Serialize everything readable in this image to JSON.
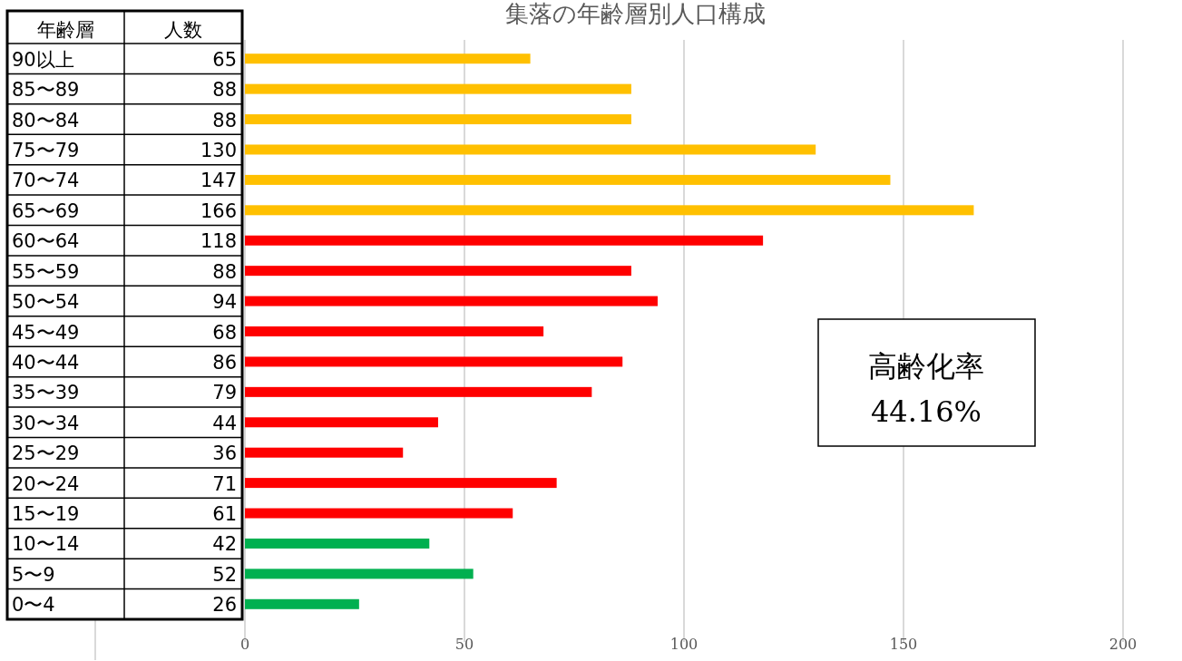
{
  "chart_data": {
    "type": "bar",
    "orientation": "horizontal",
    "title": "集落の年齢層別人口構成",
    "ylabel": "年齢層",
    "xlabel": "人数",
    "categories": [
      "90以上",
      "85〜89",
      "80〜84",
      "75〜79",
      "70〜74",
      "65〜69",
      "60〜64",
      "55〜59",
      "50〜54",
      "45〜49",
      "40〜44",
      "35〜39",
      "30〜34",
      "25〜29",
      "20〜24",
      "15〜19",
      "10〜14",
      "5〜9",
      "0〜4"
    ],
    "values": [
      65,
      88,
      88,
      130,
      147,
      166,
      118,
      88,
      94,
      68,
      86,
      79,
      44,
      36,
      71,
      61,
      42,
      52,
      26
    ],
    "colors": [
      "#ffc000",
      "#ffc000",
      "#ffc000",
      "#ffc000",
      "#ffc000",
      "#ffc000",
      "#ff0000",
      "#ff0000",
      "#ff0000",
      "#ff0000",
      "#ff0000",
      "#ff0000",
      "#ff0000",
      "#ff0000",
      "#ff0000",
      "#ff0000",
      "#00b050",
      "#00b050",
      "#00b050"
    ],
    "xlim": [
      0,
      200
    ],
    "xticks": [
      0,
      50,
      100,
      150,
      200
    ],
    "grid": "x",
    "data_labels": true,
    "annotations": [
      "高齢化率",
      "44.16%"
    ]
  }
}
